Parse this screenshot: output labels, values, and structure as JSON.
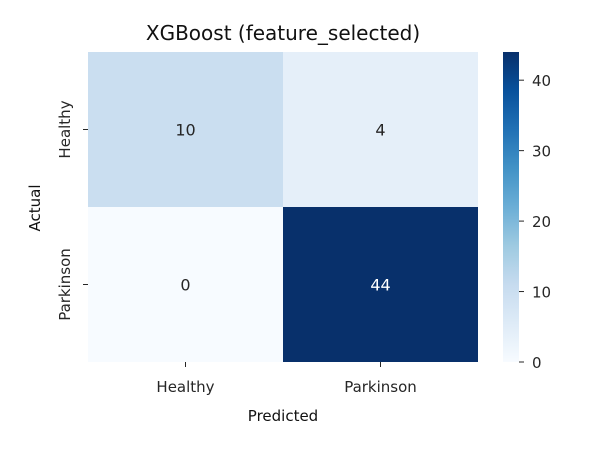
{
  "chart_data": {
    "type": "heatmap",
    "title": "XGBoost (feature_selected)",
    "xlabel": "Predicted",
    "ylabel": "Actual",
    "x_categories": [
      "Healthy",
      "Parkinson"
    ],
    "y_categories": [
      "Healthy",
      "Parkinson"
    ],
    "values": [
      [
        10,
        4
      ],
      [
        0,
        44
      ]
    ],
    "colormap": "Blues",
    "colorbar": {
      "min": 0,
      "max": 44,
      "ticks": [
        0,
        10,
        20,
        30,
        40
      ]
    },
    "low_color": "#f7fbff",
    "high_color": "#08306b",
    "grid": false
  }
}
